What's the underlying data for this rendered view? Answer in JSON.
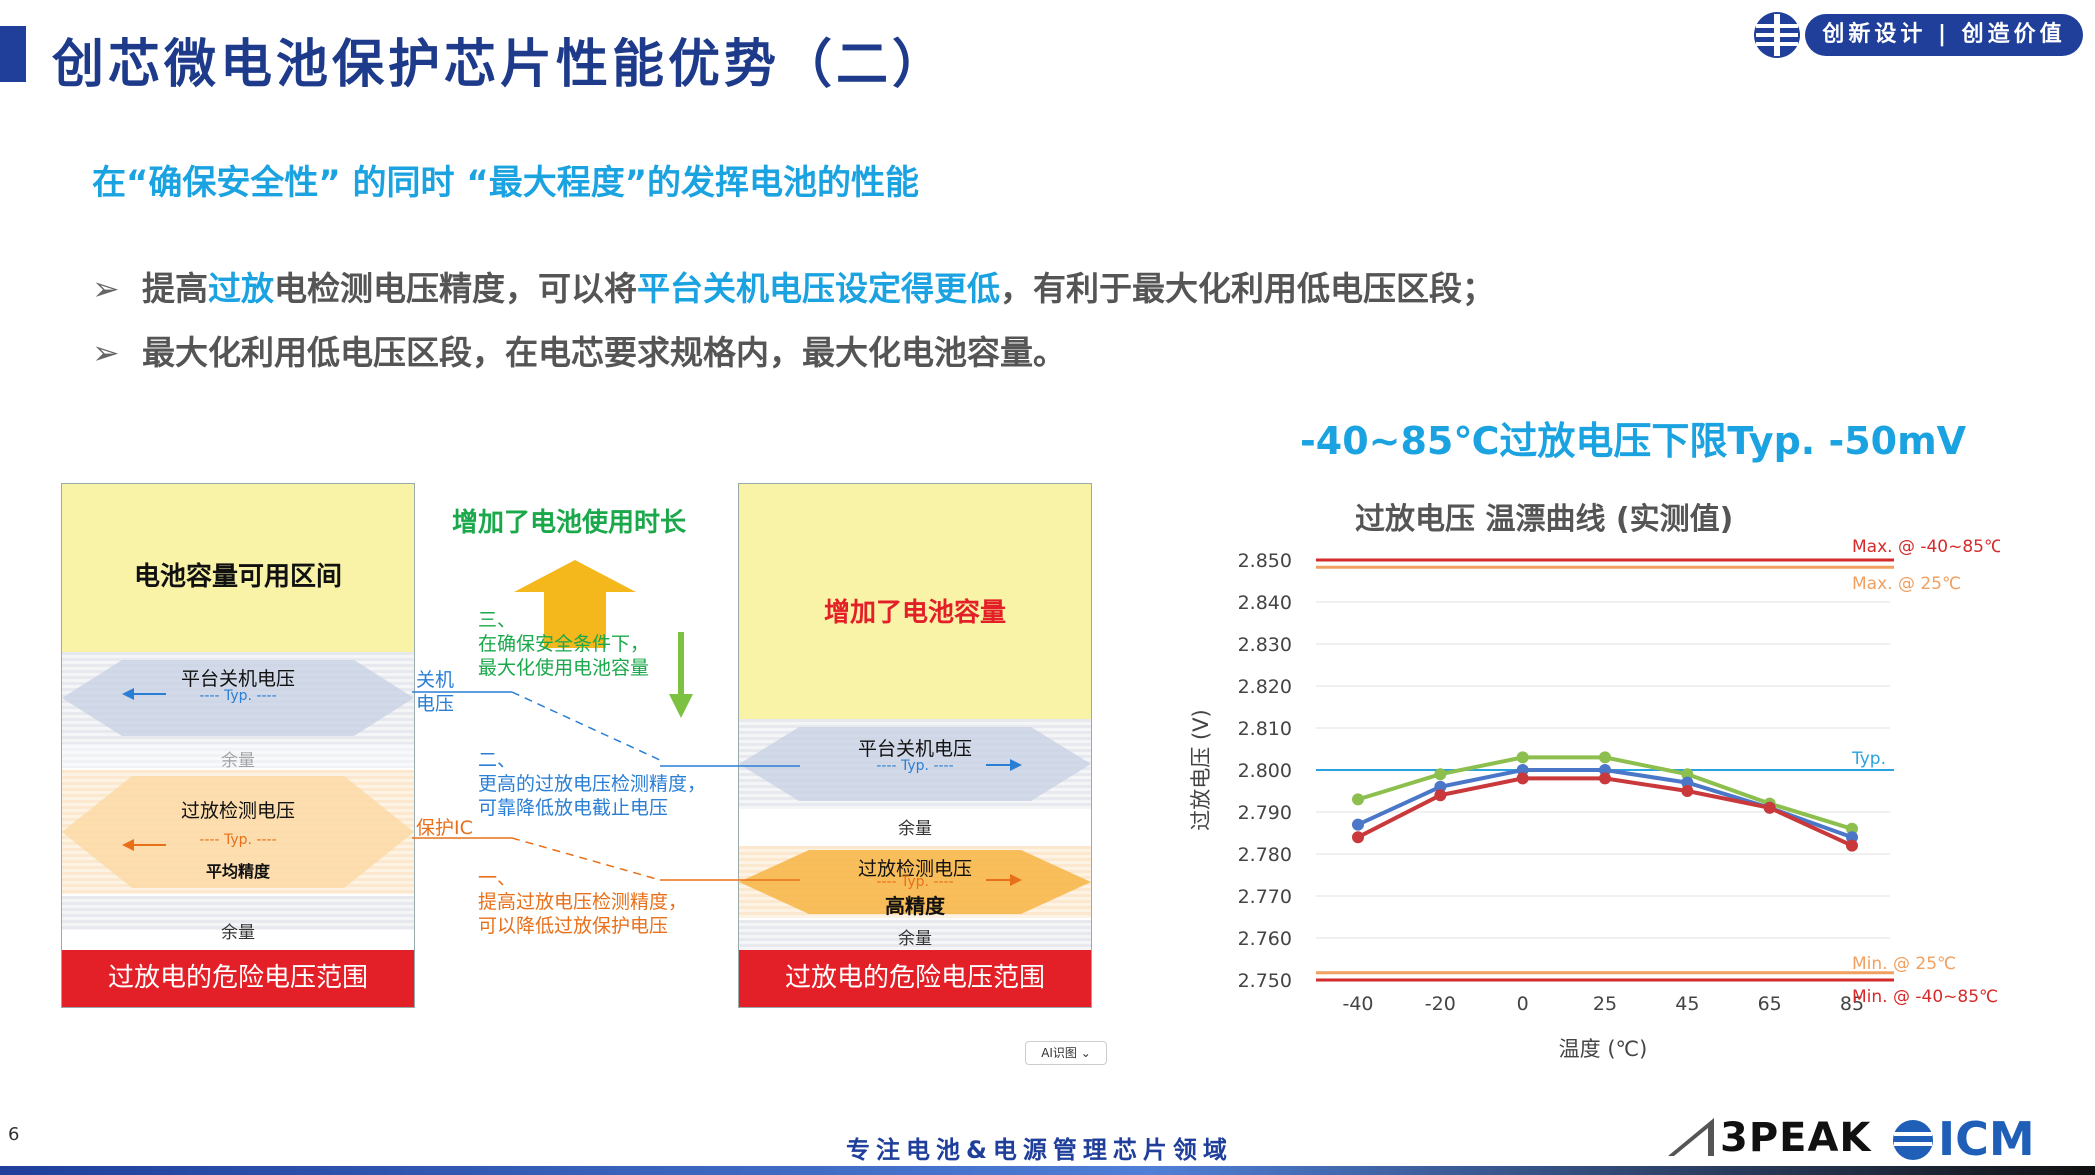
{
  "header": {
    "title": "创芯微电池保护芯片性能优势（二）",
    "brand_slogan": "创新设计 | 创造价值"
  },
  "subtitle": "在“确保安全性” 的同时 “最大程度”的发挥电池的性能",
  "bullets": [
    {
      "parts": [
        {
          "text": "提高",
          "hl": false
        },
        {
          "text": "过放",
          "hl": true
        },
        {
          "text": "电检测电压精度，可以将",
          "hl": false
        },
        {
          "text": "平台关机电压设定得更低",
          "hl": true
        },
        {
          "text": "，有利于最大化利用低电压区段；",
          "hl": false
        }
      ]
    },
    {
      "parts": [
        {
          "text": "最大化利用低电压区段，在电芯要求规格内，最大化电池容量。",
          "hl": false
        }
      ]
    }
  ],
  "diagram": {
    "left": {
      "capacity_label": "电池容量可用区间",
      "platform_label": "平台关机电压",
      "typ": "---- Typ. ----",
      "margin1": "余量",
      "detect_label": "过放检测电压",
      "avg_precision": "平均精度",
      "margin2": "余量",
      "danger": "过放电的危险电压范围"
    },
    "right": {
      "capacity_label": "增加了电池容量",
      "platform_label": "平台关机电压",
      "typ": "---- Typ. ----",
      "margin1": "余量",
      "detect_label": "过放检测电压",
      "high_precision": "高精度",
      "margin2": "余量",
      "danger": "过放电的危险电压范围"
    },
    "increase_time": "增加了电池使用时长",
    "tag_shutdown": "关机\n电压",
    "tag_protect": "保护IC",
    "note3": [
      "三、",
      "在确保安全条件下，",
      "最大化使用电池容量"
    ],
    "note2": [
      "二、",
      "更高的过放电压检测精度，",
      "可靠降低放电截止电压"
    ],
    "note1": [
      "一、",
      "提高过放电压检测精度，",
      "可以降低过放保护电压"
    ],
    "colors": {
      "green": "#1aa84a",
      "blue": "#2a7fd4",
      "orange": "#e8701a",
      "red": "#e32028"
    }
  },
  "chart_heading": "-40~85℃过放电压下限Typ. -50mV",
  "chart_data": {
    "type": "line",
    "title": "过放电压 温漂曲线 (实测值)",
    "xlabel": "温度 (℃)",
    "ylabel": "过放电压 (V)",
    "categories": [
      "-40",
      "-20",
      "0",
      "25",
      "45",
      "65",
      "85"
    ],
    "ylim": [
      2.75,
      2.85
    ],
    "yticks": [
      "2.850",
      "2.840",
      "2.830",
      "2.820",
      "2.810",
      "2.800",
      "2.790",
      "2.780",
      "2.770",
      "2.760",
      "2.750"
    ],
    "series": [
      {
        "color": "#8cbf4d",
        "values": [
          2.793,
          2.799,
          2.803,
          2.803,
          2.799,
          2.792,
          2.786
        ]
      },
      {
        "color": "#4a77c8",
        "values": [
          2.787,
          2.796,
          2.8,
          2.8,
          2.797,
          2.791,
          2.784
        ]
      },
      {
        "color": "#c9383a",
        "values": [
          2.784,
          2.794,
          2.798,
          2.798,
          2.795,
          2.791,
          2.782
        ]
      }
    ],
    "reference_lines": [
      {
        "label": "Max. @ -40~85℃",
        "value": 2.85,
        "color": "#d62b2b"
      },
      {
        "label": "Max. @ 25℃",
        "value": 2.849,
        "color": "#f0a060"
      },
      {
        "label": "Typ.",
        "value": 2.8,
        "color": "#29a3e0"
      },
      {
        "label": "Min. @ 25℃",
        "value": 2.751,
        "color": "#f0a060"
      },
      {
        "label": "Min. @ -40~85℃",
        "value": 2.75,
        "color": "#d62b2b"
      }
    ],
    "grid": true
  },
  "footer": {
    "tagline": "专注电池&电源管理芯片领域",
    "page_number": "6",
    "logo_3peak": "3PEAK",
    "logo_icm": "ICM",
    "ai_chip": "AI识图 ⌄"
  }
}
